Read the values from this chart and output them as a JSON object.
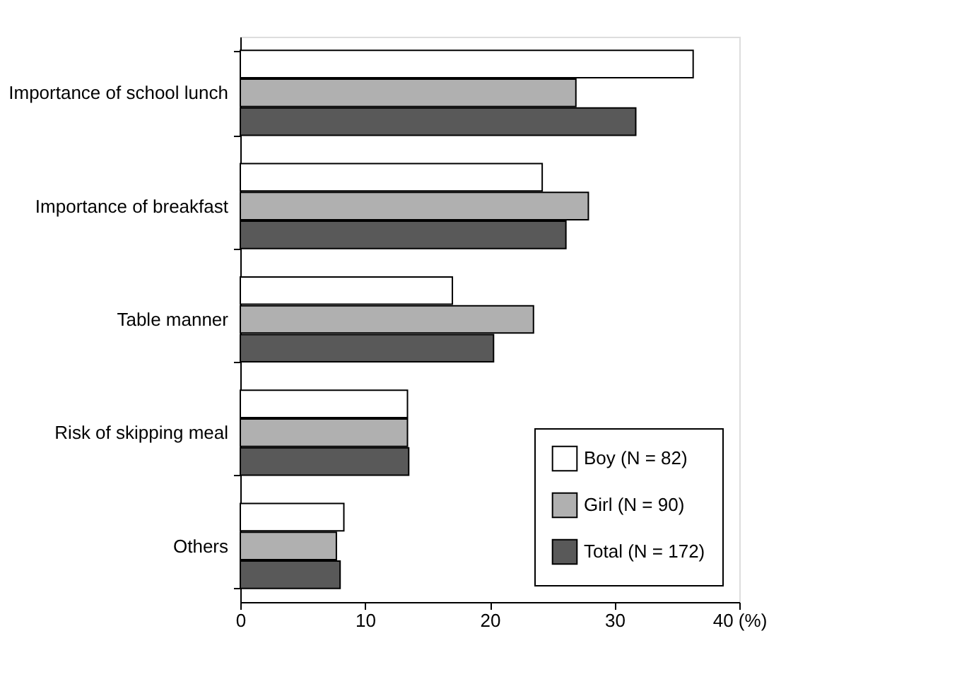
{
  "chart_data": {
    "type": "bar",
    "orientation": "horizontal",
    "categories": [
      "Importance of school lunch",
      "Importance of breakfast",
      "Table manner",
      "Risk of skipping meal",
      "Others"
    ],
    "series": [
      {
        "name": "Boy (N = 82)",
        "color": "#ffffff",
        "values": [
          36.3,
          24.2,
          17.0,
          13.4,
          8.3
        ]
      },
      {
        "name": "Girl (N = 90)",
        "color": "#b0b0b0",
        "values": [
          26.9,
          27.9,
          23.5,
          13.4,
          7.7
        ]
      },
      {
        "name": "Total (N = 172)",
        "color": "#595959",
        "values": [
          31.7,
          26.1,
          20.3,
          13.5,
          8.0
        ]
      }
    ],
    "xlim": [
      0,
      40
    ],
    "xticks": [
      0,
      10,
      20,
      30,
      {
        "value": 40,
        "label": "40 (%)"
      }
    ],
    "grid": false,
    "legend": "bottom right"
  }
}
